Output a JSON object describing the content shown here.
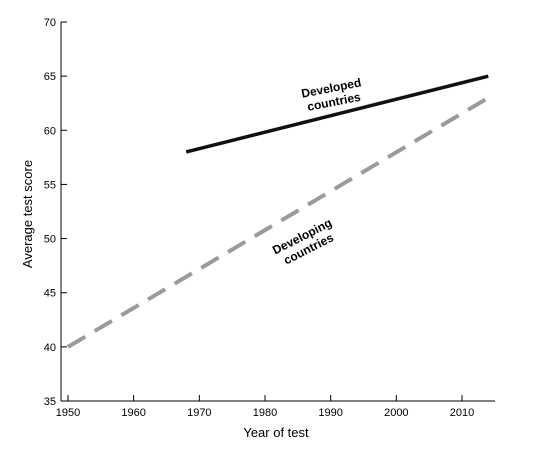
{
  "chart_data": {
    "type": "line",
    "title": "",
    "xlabel": "Year of test",
    "ylabel": "Average test score",
    "xlim": [
      1950,
      2015
    ],
    "ylim": [
      35,
      70
    ],
    "xticks": [
      1950,
      1960,
      1970,
      1980,
      1990,
      2000,
      2010
    ],
    "yticks": [
      35,
      40,
      45,
      50,
      55,
      60,
      65,
      70
    ],
    "grid": false,
    "legend": "none",
    "series": [
      {
        "x": [
          1968,
          2014
        ],
        "y": [
          58,
          65
        ],
        "color": "#111111",
        "style": "solid"
      },
      {
        "x": [
          1950,
          2014
        ],
        "y": [
          40,
          63
        ],
        "color": "#9a9a9a",
        "style": "dashed"
      }
    ],
    "annotations": [
      {
        "lines": [
          "Developed",
          "countries"
        ]
      },
      {
        "lines": [
          "Developing",
          "countries"
        ]
      }
    ]
  }
}
